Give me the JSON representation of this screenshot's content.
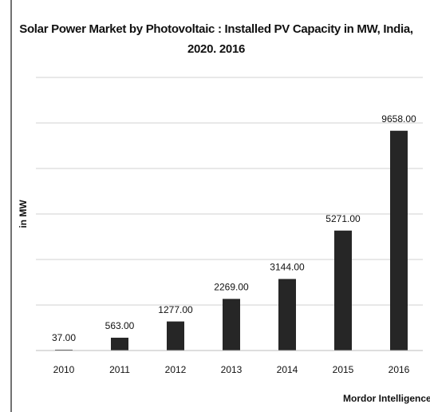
{
  "chart_data": {
    "type": "bar",
    "title": "Solar Power Market by Photovoltaic : Installed PV Capacity in MW, India, 2020. 2016",
    "ylabel": "in MW",
    "categories": [
      "2010",
      "2011",
      "2012",
      "2013",
      "2014",
      "2015",
      "2016"
    ],
    "values": [
      37,
      563,
      1277,
      2269,
      3144,
      5271,
      9658
    ],
    "value_labels": [
      "37.00",
      "563.00",
      "1277.00",
      "2269.00",
      "3144.00",
      "5271.00",
      "9658.00"
    ],
    "color": "#262626",
    "ylim": [
      0,
      12000
    ],
    "yticks": [
      0,
      2000,
      4000,
      6000,
      8000,
      10000,
      12000
    ],
    "grid": true,
    "source": "Mordor Intelligence"
  }
}
